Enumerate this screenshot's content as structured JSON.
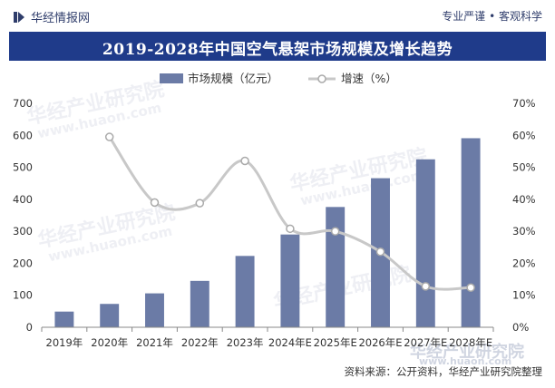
{
  "header": {
    "brand": "华经情报网",
    "slogan": "专业严谨 • 客观科学"
  },
  "title": "2019-2028年中国空气悬架市场规模及增长趋势",
  "source": "资料来源：公开资料，华经产业研究院整理",
  "watermarks": [
    "华经产业研究院",
    "www.huaon.com"
  ],
  "colors": {
    "bar": "#6b7ba6",
    "line": "#c8c8c8",
    "title_bg": "#1f3b8a",
    "brand": "#2f3d6b"
  },
  "chart_data": {
    "type": "bar+line",
    "categories": [
      "2019年",
      "2020年",
      "2021年",
      "2022年",
      "2023年",
      "2024年E",
      "2025年E",
      "2026年E",
      "2027年E",
      "2028年E"
    ],
    "series": [
      {
        "name": "市场规模（亿元）",
        "type": "bar",
        "axis": "left",
        "values": [
          49,
          73,
          106,
          145,
          223,
          290,
          376,
          466,
          525,
          591
        ]
      },
      {
        "name": "增速（%）",
        "type": "line",
        "axis": "right",
        "values": [
          null,
          59.5,
          39.0,
          38.8,
          52.0,
          30.8,
          30.0,
          23.6,
          12.8,
          12.4
        ]
      }
    ],
    "y_left": {
      "min": 0,
      "max": 700,
      "ticks": [
        "0",
        "100",
        "200",
        "300",
        "400",
        "500",
        "600",
        "700"
      ]
    },
    "y_right": {
      "min": 0,
      "max": 70,
      "ticks": [
        "0%",
        "10%",
        "20%",
        "30%",
        "40%",
        "50%",
        "60%",
        "70%"
      ]
    },
    "legend": "top-center",
    "grid": false
  }
}
